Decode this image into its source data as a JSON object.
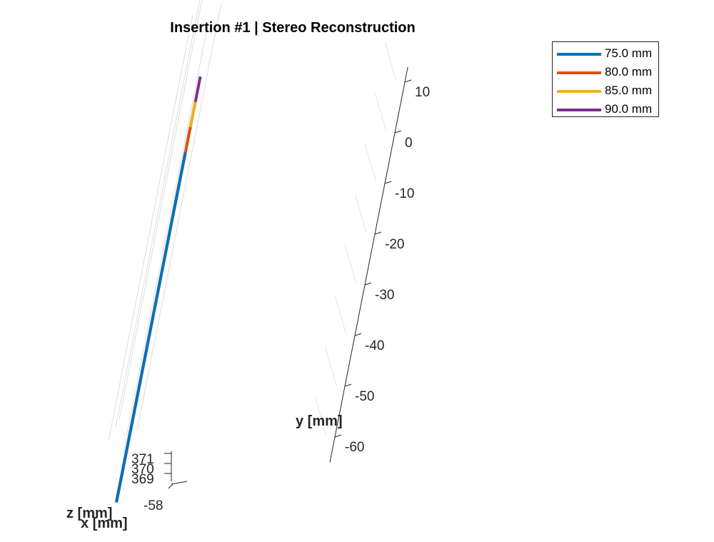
{
  "chart_data": {
    "type": "line",
    "title": "Insertion #1 | Stereo Reconstruction",
    "xlabel": "x [mm]",
    "ylabel": "y [mm]",
    "zlabel": "z [mm]",
    "y_ticks": [
      10,
      0,
      -10,
      -20,
      -30,
      -40,
      -50,
      -60
    ],
    "z_ticks": [
      371,
      370,
      369
    ],
    "x_ticks": [
      -58
    ],
    "grid": true,
    "legend_position": "top-right",
    "series": [
      {
        "name": "75.0 mm",
        "color": "#0072BD",
        "y_start": -65,
        "y_end": 4
      },
      {
        "name": "80.0 mm",
        "color": "#D95319",
        "y_start": -65,
        "y_end": 9
      },
      {
        "name": "85.0 mm",
        "color": "#EDB120",
        "y_start": -65,
        "y_end": 14
      },
      {
        "name": "90.0 mm",
        "color": "#7E2F8E",
        "y_start": -65,
        "y_end": 19
      }
    ]
  }
}
